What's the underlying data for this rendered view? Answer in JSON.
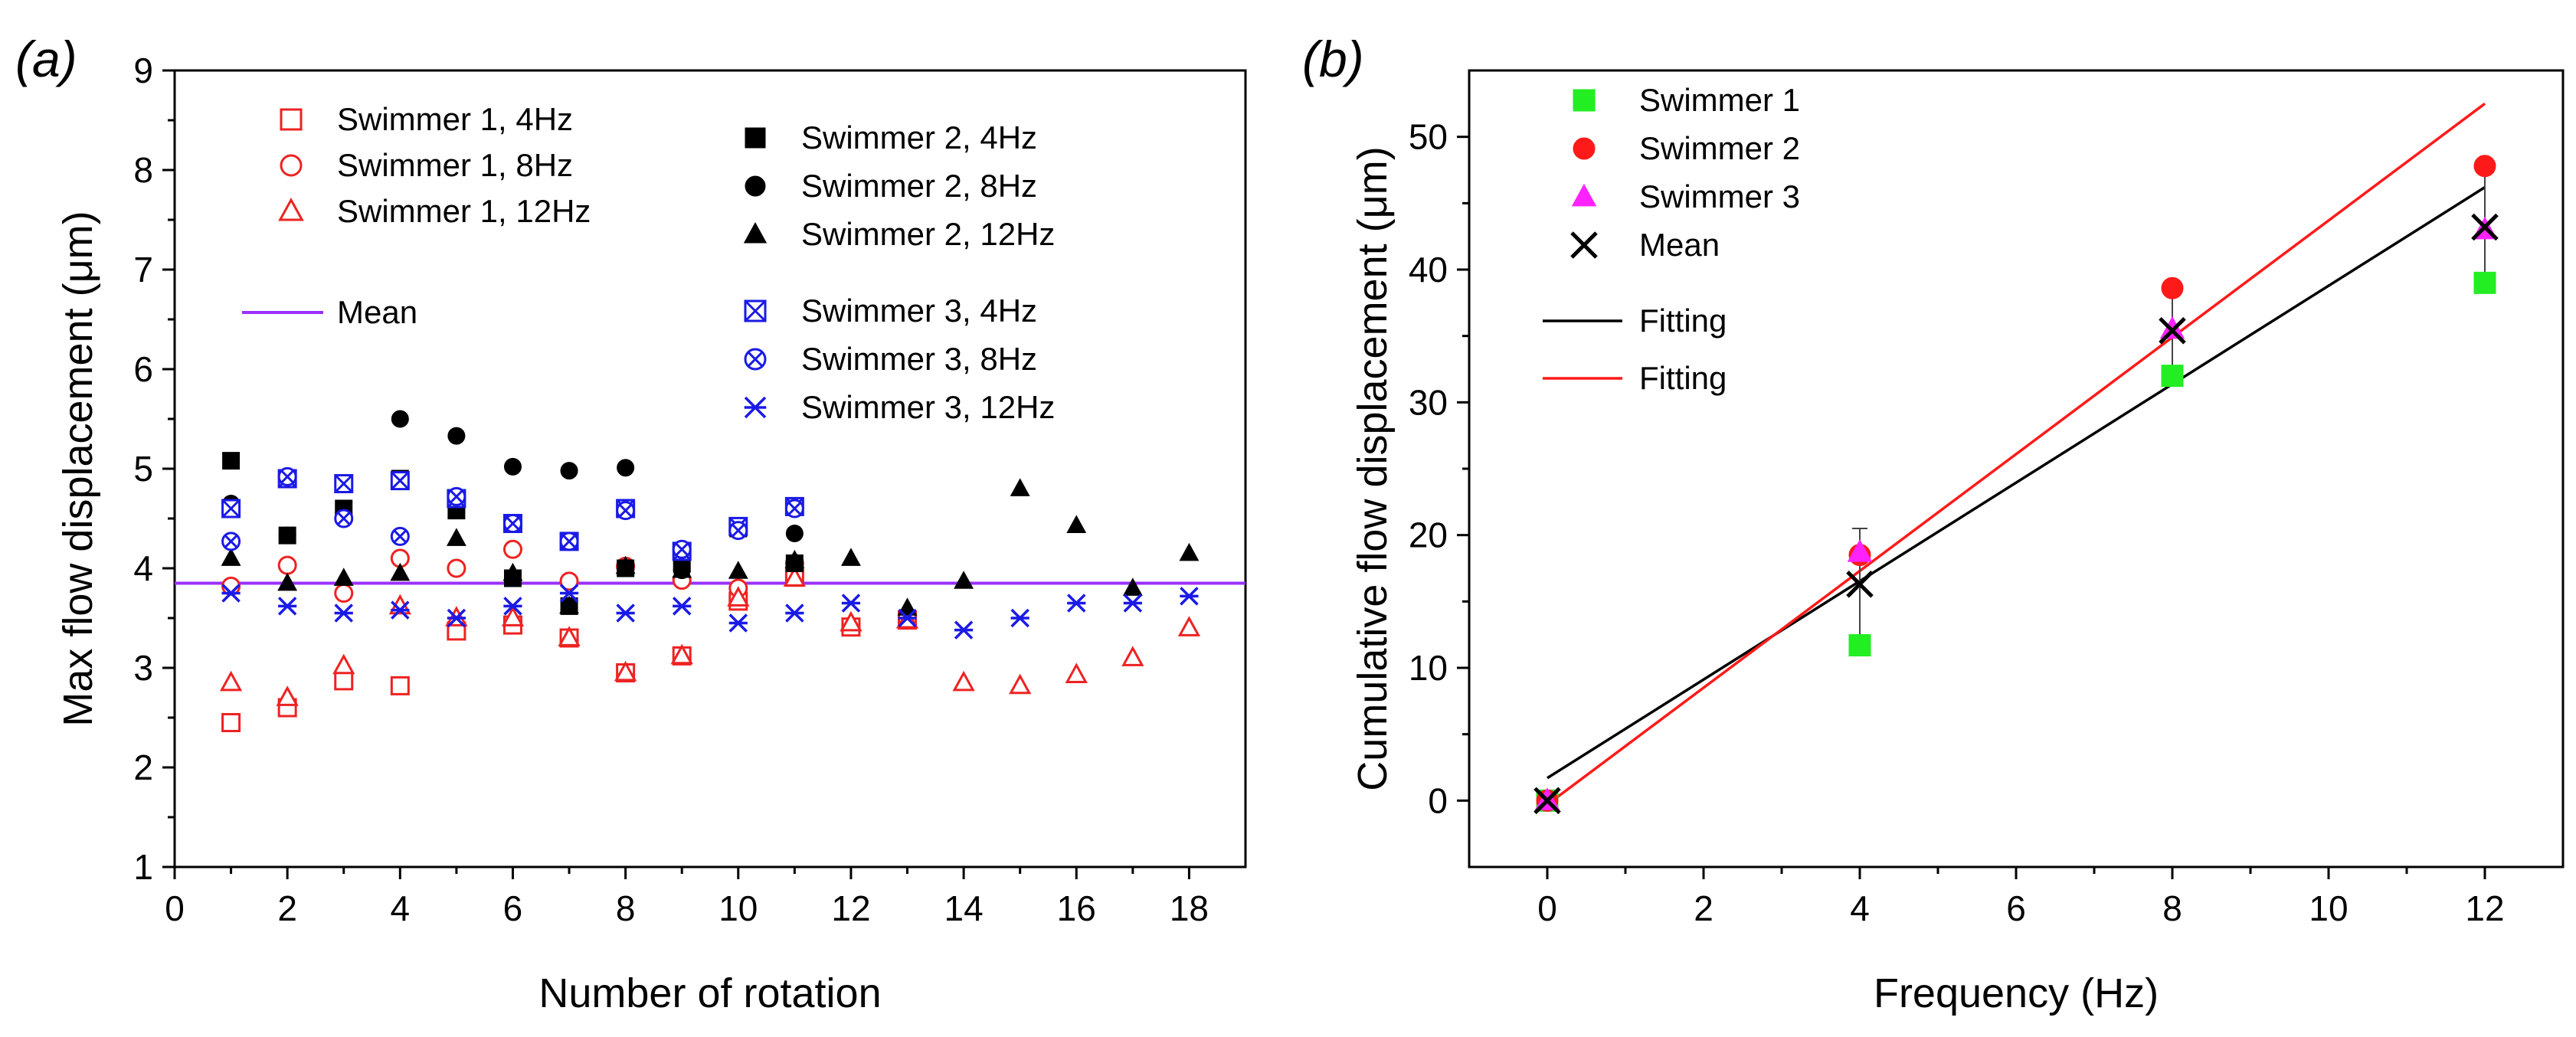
{
  "chart_data": [
    {
      "panel": "a",
      "panel_label": "(a)",
      "type": "scatter",
      "xlabel": "Number of rotation",
      "ylabel": "Max flow displacement (μm)",
      "xlim": [
        0,
        19
      ],
      "ylim": [
        1,
        9
      ],
      "xticks": [
        0,
        2,
        4,
        6,
        8,
        10,
        12,
        14,
        16,
        18
      ],
      "yticks": [
        1,
        2,
        3,
        4,
        5,
        6,
        7,
        8,
        9
      ],
      "mean_value": 3.85,
      "mean_label": "Mean",
      "colors": {
        "swimmer1": "#ee2222",
        "swimmer2": "#000000",
        "swimmer3": "#1a1ae6",
        "mean": "#9b30ff"
      },
      "series": [
        {
          "name": "Swimmer 1, 4Hz",
          "marker": "square-open",
          "color": "#ee2222",
          "x": [
            1,
            2,
            3,
            4,
            5,
            6,
            7,
            8,
            9,
            10,
            11,
            12,
            13
          ],
          "y": [
            2.45,
            2.6,
            2.87,
            2.82,
            3.37,
            3.43,
            3.3,
            2.95,
            3.12,
            3.67,
            3.91,
            3.41,
            3.48
          ]
        },
        {
          "name": "Swimmer 1, 8Hz",
          "marker": "circle-open",
          "color": "#ee2222",
          "x": [
            1,
            2,
            3,
            4,
            5,
            6,
            7,
            8,
            9,
            10,
            11
          ],
          "y": [
            3.82,
            4.03,
            3.75,
            4.1,
            4.0,
            4.19,
            3.87,
            4.02,
            3.88,
            3.8,
            4.05
          ]
        },
        {
          "name": "Swimmer 1, 12Hz",
          "marker": "triangle-open",
          "color": "#ee2222",
          "x": [
            1,
            2,
            3,
            4,
            5,
            6,
            7,
            8,
            9,
            10,
            11,
            12,
            13,
            14,
            15,
            16,
            17,
            18
          ],
          "y": [
            2.85,
            2.7,
            3.02,
            3.62,
            3.5,
            3.5,
            3.3,
            2.95,
            3.12,
            3.7,
            3.9,
            3.45,
            3.48,
            2.85,
            2.82,
            2.93,
            3.1,
            3.4
          ]
        },
        {
          "name": "Swimmer 2, 4Hz",
          "marker": "square",
          "color": "#000000",
          "x": [
            1,
            2,
            3,
            4,
            5,
            6,
            7,
            8,
            9,
            10,
            11
          ],
          "y": [
            5.08,
            4.33,
            4.6,
            4.9,
            4.58,
            3.9,
            3.62,
            4.0,
            4.05,
            4.4,
            4.05
          ]
        },
        {
          "name": "Swimmer 2, 8Hz",
          "marker": "circle",
          "color": "#000000",
          "x": [
            1,
            2,
            3,
            4,
            5,
            6,
            7,
            8,
            9,
            10,
            11
          ],
          "y": [
            4.65,
            4.33,
            4.55,
            5.5,
            5.33,
            5.02,
            4.98,
            5.01,
            3.98,
            4.42,
            4.35
          ]
        },
        {
          "name": "Swimmer 2, 12Hz",
          "marker": "triangle",
          "color": "#000000",
          "x": [
            1,
            2,
            3,
            4,
            5,
            6,
            7,
            8,
            9,
            10,
            11,
            12,
            13,
            14,
            15,
            16,
            17,
            18
          ],
          "y": [
            4.1,
            3.85,
            3.9,
            3.95,
            4.3,
            3.95,
            3.62,
            4.02,
            3.98,
            3.97,
            4.08,
            4.1,
            3.6,
            3.87,
            4.8,
            4.43,
            3.8,
            4.15
          ]
        },
        {
          "name": "Swimmer 3, 4Hz",
          "marker": "square-x",
          "color": "#1a1ae6",
          "x": [
            1,
            2,
            3,
            4,
            5,
            6,
            7,
            8,
            9,
            10,
            11
          ],
          "y": [
            4.6,
            4.9,
            4.85,
            4.88,
            4.7,
            4.45,
            4.27,
            4.6,
            4.17,
            4.42,
            4.62
          ]
        },
        {
          "name": "Swimmer 3, 8Hz",
          "marker": "circle-x",
          "color": "#1a1ae6",
          "x": [
            1,
            2,
            3,
            4,
            5,
            6,
            7,
            8,
            9,
            10,
            11
          ],
          "y": [
            4.27,
            4.92,
            4.5,
            4.32,
            4.72,
            4.45,
            4.27,
            4.58,
            4.19,
            4.38,
            4.6
          ]
        },
        {
          "name": "Swimmer 3, 12Hz",
          "marker": "star",
          "color": "#1a1ae6",
          "x": [
            1,
            2,
            3,
            4,
            5,
            6,
            7,
            8,
            9,
            10,
            11,
            12,
            13,
            14,
            15,
            16,
            17,
            18
          ],
          "y": [
            3.75,
            3.62,
            3.55,
            3.58,
            3.5,
            3.62,
            3.75,
            3.55,
            3.62,
            3.45,
            3.55,
            3.65,
            3.5,
            3.38,
            3.5,
            3.65,
            3.65,
            3.72
          ]
        }
      ],
      "legend": {
        "group1": [
          "Swimmer 1, 4Hz",
          "Swimmer 1, 8Hz",
          "Swimmer 1, 12Hz"
        ],
        "group2": [
          "Swimmer 2, 4Hz",
          "Swimmer 2, 8Hz",
          "Swimmer 2, 12Hz"
        ],
        "group3": [
          "Swimmer 3, 4Hz",
          "Swimmer 3, 8Hz",
          "Swimmer 3, 12Hz"
        ]
      }
    },
    {
      "panel": "b",
      "panel_label": "(b)",
      "type": "scatter",
      "xlabel": "Frequency (Hz)",
      "ylabel": "Cumulative flow displacement (μm)",
      "xlim": [
        -1,
        13
      ],
      "ylim": [
        -5,
        55
      ],
      "xticks": [
        0,
        2,
        4,
        6,
        8,
        10,
        12
      ],
      "yticks": [
        0,
        10,
        20,
        30,
        40,
        50
      ],
      "colors": {
        "swimmer1": "#22ee22",
        "swimmer2": "#ff1a1a",
        "swimmer3": "#ff22ff",
        "mean": "#000000",
        "fit_black": "#000000",
        "fit_red": "#ff1a1a"
      },
      "series": [
        {
          "name": "Swimmer 1",
          "marker": "square",
          "color": "#22ee22",
          "x": [
            0,
            4,
            8,
            12
          ],
          "y": [
            0,
            11.7,
            32,
            39
          ]
        },
        {
          "name": "Swimmer 2",
          "marker": "circle",
          "color": "#ff1a1a",
          "x": [
            0,
            4,
            8,
            12
          ],
          "y": [
            0,
            18.5,
            38.6,
            47.8
          ]
        },
        {
          "name": "Swimmer 3",
          "marker": "triangle",
          "color": "#ff22ff",
          "x": [
            0,
            4,
            8,
            12
          ],
          "y": [
            0,
            18.7,
            35.5,
            43
          ]
        },
        {
          "name": "Mean",
          "marker": "x",
          "color": "#000000",
          "x": [
            0,
            4,
            8,
            12
          ],
          "y": [
            0,
            16.3,
            35.4,
            43.2
          ],
          "err": [
            0,
            4.2,
            3.3,
            4.4
          ]
        }
      ],
      "fits": [
        {
          "name": "Fitting",
          "color": "#000000",
          "x": [
            0,
            12
          ],
          "y": [
            1.7,
            46.2
          ]
        },
        {
          "name": "Fitting",
          "color": "#ff1a1a",
          "x": [
            0,
            12
          ],
          "y": [
            -0.3,
            52.5
          ]
        }
      ]
    }
  ]
}
